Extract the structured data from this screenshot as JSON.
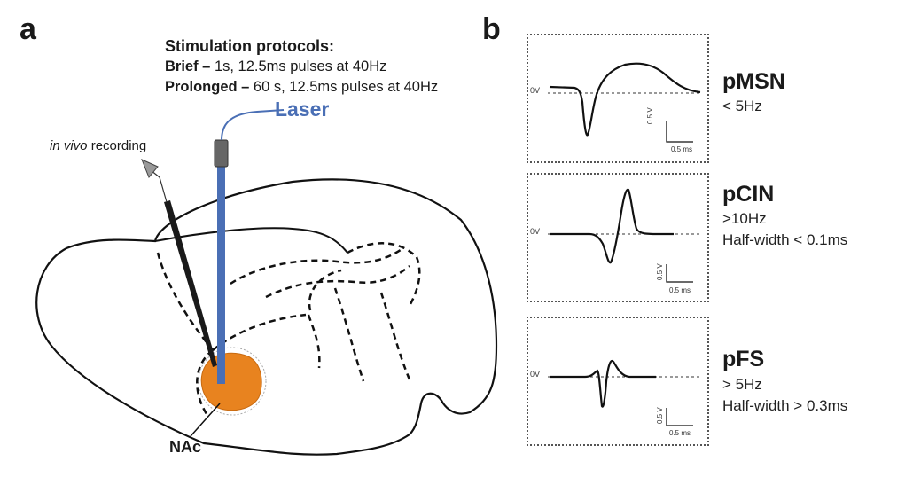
{
  "panel_a": {
    "letter": "a",
    "protocol_title": "Stimulation protocols:",
    "brief_label": "Brief –",
    "brief_text": " 1s, 12.5ms pulses at 40Hz",
    "prolonged_label": "Prolonged –",
    "prolonged_text": " 60 s, 12.5ms pulses at 40Hz",
    "laser_label": "Laser",
    "recording_italic": "in vivo",
    "recording_text": " recording",
    "region_label": "NAc",
    "colors": {
      "laser_fiber": "#4a6fb5",
      "nac_region": "#e8831f",
      "electrode": "#1a1a1a"
    }
  },
  "panel_b": {
    "letter": "b",
    "waveforms": [
      {
        "name": "pMSN",
        "desc": [
          "< 5Hz"
        ],
        "baseline_label": "0V",
        "scale_v": "0.5 V",
        "scale_t": "0.5 ms"
      },
      {
        "name": "pCIN",
        "desc": [
          ">10Hz",
          "Half-width < 0.1ms"
        ],
        "baseline_label": "0V",
        "scale_v": "0.5 V",
        "scale_t": "0.5 ms"
      },
      {
        "name": "pFS",
        "desc": [
          "> 5Hz",
          "Half-width > 0.3ms"
        ],
        "baseline_label": "0V",
        "scale_v": "0.5 V",
        "scale_t": "0.5 ms"
      }
    ]
  }
}
